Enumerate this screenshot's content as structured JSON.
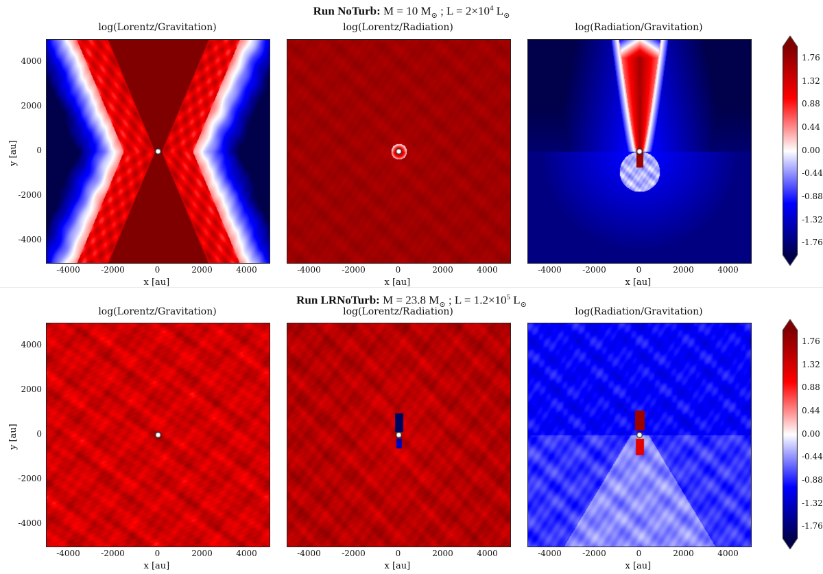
{
  "rows": [
    {
      "run_name": "Run NoTurb:",
      "title_rest_prefix": "M = 10 M",
      "title_mid": " ; L = 2×10",
      "title_exp": "4",
      "title_end": " L",
      "sun_sub": "⊙",
      "panels": [
        {
          "title": "log(Lorentz/Gravitation)",
          "field": "lg1"
        },
        {
          "title": "log(Lorentz/Radiation)",
          "field": "lr1"
        },
        {
          "title": "log(Radiation/Gravitation)",
          "field": "rg1"
        }
      ]
    },
    {
      "run_name": "Run LRNoTurb:",
      "title_rest_prefix": "M = 23.8 M",
      "title_mid": " ; L = 1.2×10",
      "title_exp": "5",
      "title_end": " L",
      "sun_sub": "⊙",
      "panels": [
        {
          "title": "log(Lorentz/Gravitation)",
          "field": "lg2"
        },
        {
          "title": "log(Lorentz/Radiation)",
          "field": "lr2"
        },
        {
          "title": "log(Radiation/Gravitation)",
          "field": "rg2"
        }
      ]
    }
  ],
  "chart_data": {
    "type": "heatmap",
    "xlabel": "x [au]",
    "ylabel": "y [au]",
    "xlim": [
      -5000,
      5000
    ],
    "ylim": [
      -5000,
      5000
    ],
    "x_ticks": [
      -4000,
      -2000,
      0,
      2000,
      4000
    ],
    "y_ticks": [
      4000,
      2000,
      0,
      -2000,
      -4000
    ],
    "colorbar": {
      "ticks": [
        "1.76",
        "1.32",
        "0.88",
        "0.44",
        "0.00",
        "-0.44",
        "-0.88",
        "-1.32",
        "-1.76"
      ],
      "range": [
        -2.0,
        2.0
      ],
      "colormap": "seismic",
      "colors": {
        "low": "#00004c",
        "mid": "#ffffff",
        "high": "#800000"
      }
    }
  }
}
